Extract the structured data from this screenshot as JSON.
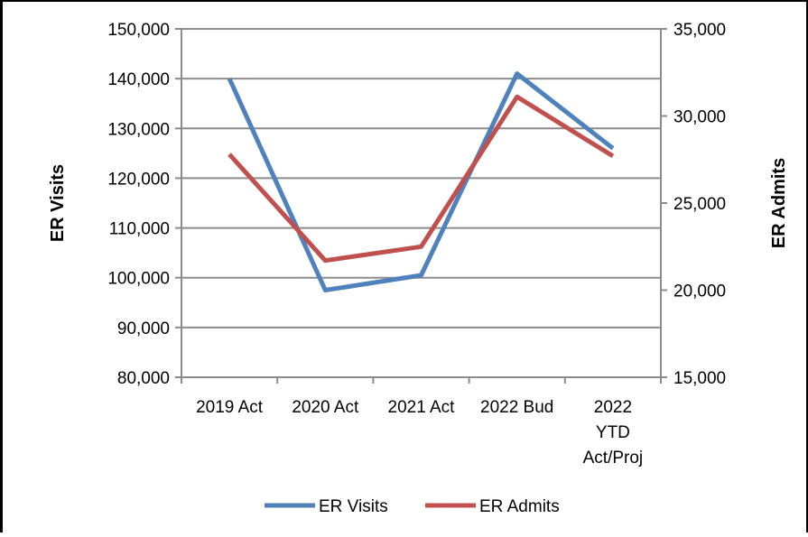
{
  "chart_data": {
    "type": "line",
    "title": "",
    "categories": [
      [
        "2019 Act"
      ],
      [
        "2020 Act"
      ],
      [
        "2021 Act"
      ],
      [
        "2022 Bud"
      ],
      [
        "2022",
        "YTD",
        "Act/Proj"
      ]
    ],
    "ylabel": "ER Visits",
    "y2label": "ER Admits",
    "ylim": [
      80000,
      150000
    ],
    "y2lim": [
      15000,
      35000
    ],
    "yticks": [
      "80,000",
      "90,000",
      "100,000",
      "110,000",
      "120,000",
      "130,000",
      "140,000",
      "150,000"
    ],
    "y2ticks": [
      "15,000",
      "20,000",
      "25,000",
      "30,000",
      "35,000"
    ],
    "grid": true,
    "legend_position": "bottom",
    "series": [
      {
        "name": "ER Visits",
        "axis": "left",
        "color": "#4f81bd",
        "values": [
          140000,
          97500,
          100500,
          141000,
          126000
        ]
      },
      {
        "name": "ER Admits",
        "axis": "right",
        "color": "#c0504d",
        "values": [
          27800,
          21700,
          22500,
          31100,
          27700
        ]
      }
    ]
  }
}
